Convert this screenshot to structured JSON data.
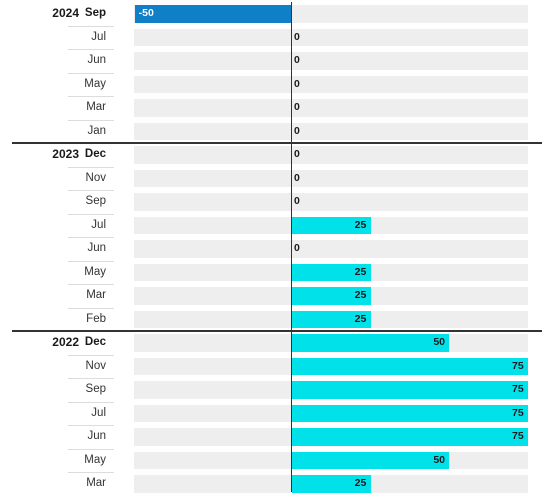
{
  "chart_data": {
    "type": "bar",
    "orientation": "horizontal",
    "xlim": [
      -50,
      75
    ],
    "colors": {
      "positive": "#00e1ea",
      "negative": "#0f7fc8"
    },
    "rows": [
      {
        "year": "2024",
        "month": "Sep",
        "value": -50,
        "label": "-50"
      },
      {
        "year": "",
        "month": "Jul",
        "value": 0,
        "label": "0"
      },
      {
        "year": "",
        "month": "Jun",
        "value": 0,
        "label": "0"
      },
      {
        "year": "",
        "month": "May",
        "value": 0,
        "label": "0"
      },
      {
        "year": "",
        "month": "Mar",
        "value": 0,
        "label": "0"
      },
      {
        "year": "",
        "month": "Jan",
        "value": 0,
        "label": "0"
      },
      {
        "year": "2023",
        "month": "Dec",
        "value": 0,
        "label": "0"
      },
      {
        "year": "",
        "month": "Nov",
        "value": 0,
        "label": "0"
      },
      {
        "year": "",
        "month": "Sep",
        "value": 0,
        "label": "0"
      },
      {
        "year": "",
        "month": "Jul",
        "value": 25,
        "label": "25"
      },
      {
        "year": "",
        "month": "Jun",
        "value": 0,
        "label": "0"
      },
      {
        "year": "",
        "month": "May",
        "value": 25,
        "label": "25"
      },
      {
        "year": "",
        "month": "Mar",
        "value": 25,
        "label": "25"
      },
      {
        "year": "",
        "month": "Feb",
        "value": 25,
        "label": "25"
      },
      {
        "year": "2022",
        "month": "Dec",
        "value": 50,
        "label": "50"
      },
      {
        "year": "",
        "month": "Nov",
        "value": 75,
        "label": "75"
      },
      {
        "year": "",
        "month": "Sep",
        "value": 75,
        "label": "75"
      },
      {
        "year": "",
        "month": "Jul",
        "value": 75,
        "label": "75"
      },
      {
        "year": "",
        "month": "Jun",
        "value": 75,
        "label": "75"
      },
      {
        "year": "",
        "month": "May",
        "value": 50,
        "label": "50"
      },
      {
        "year": "",
        "month": "Mar",
        "value": 25,
        "label": "25"
      }
    ]
  }
}
